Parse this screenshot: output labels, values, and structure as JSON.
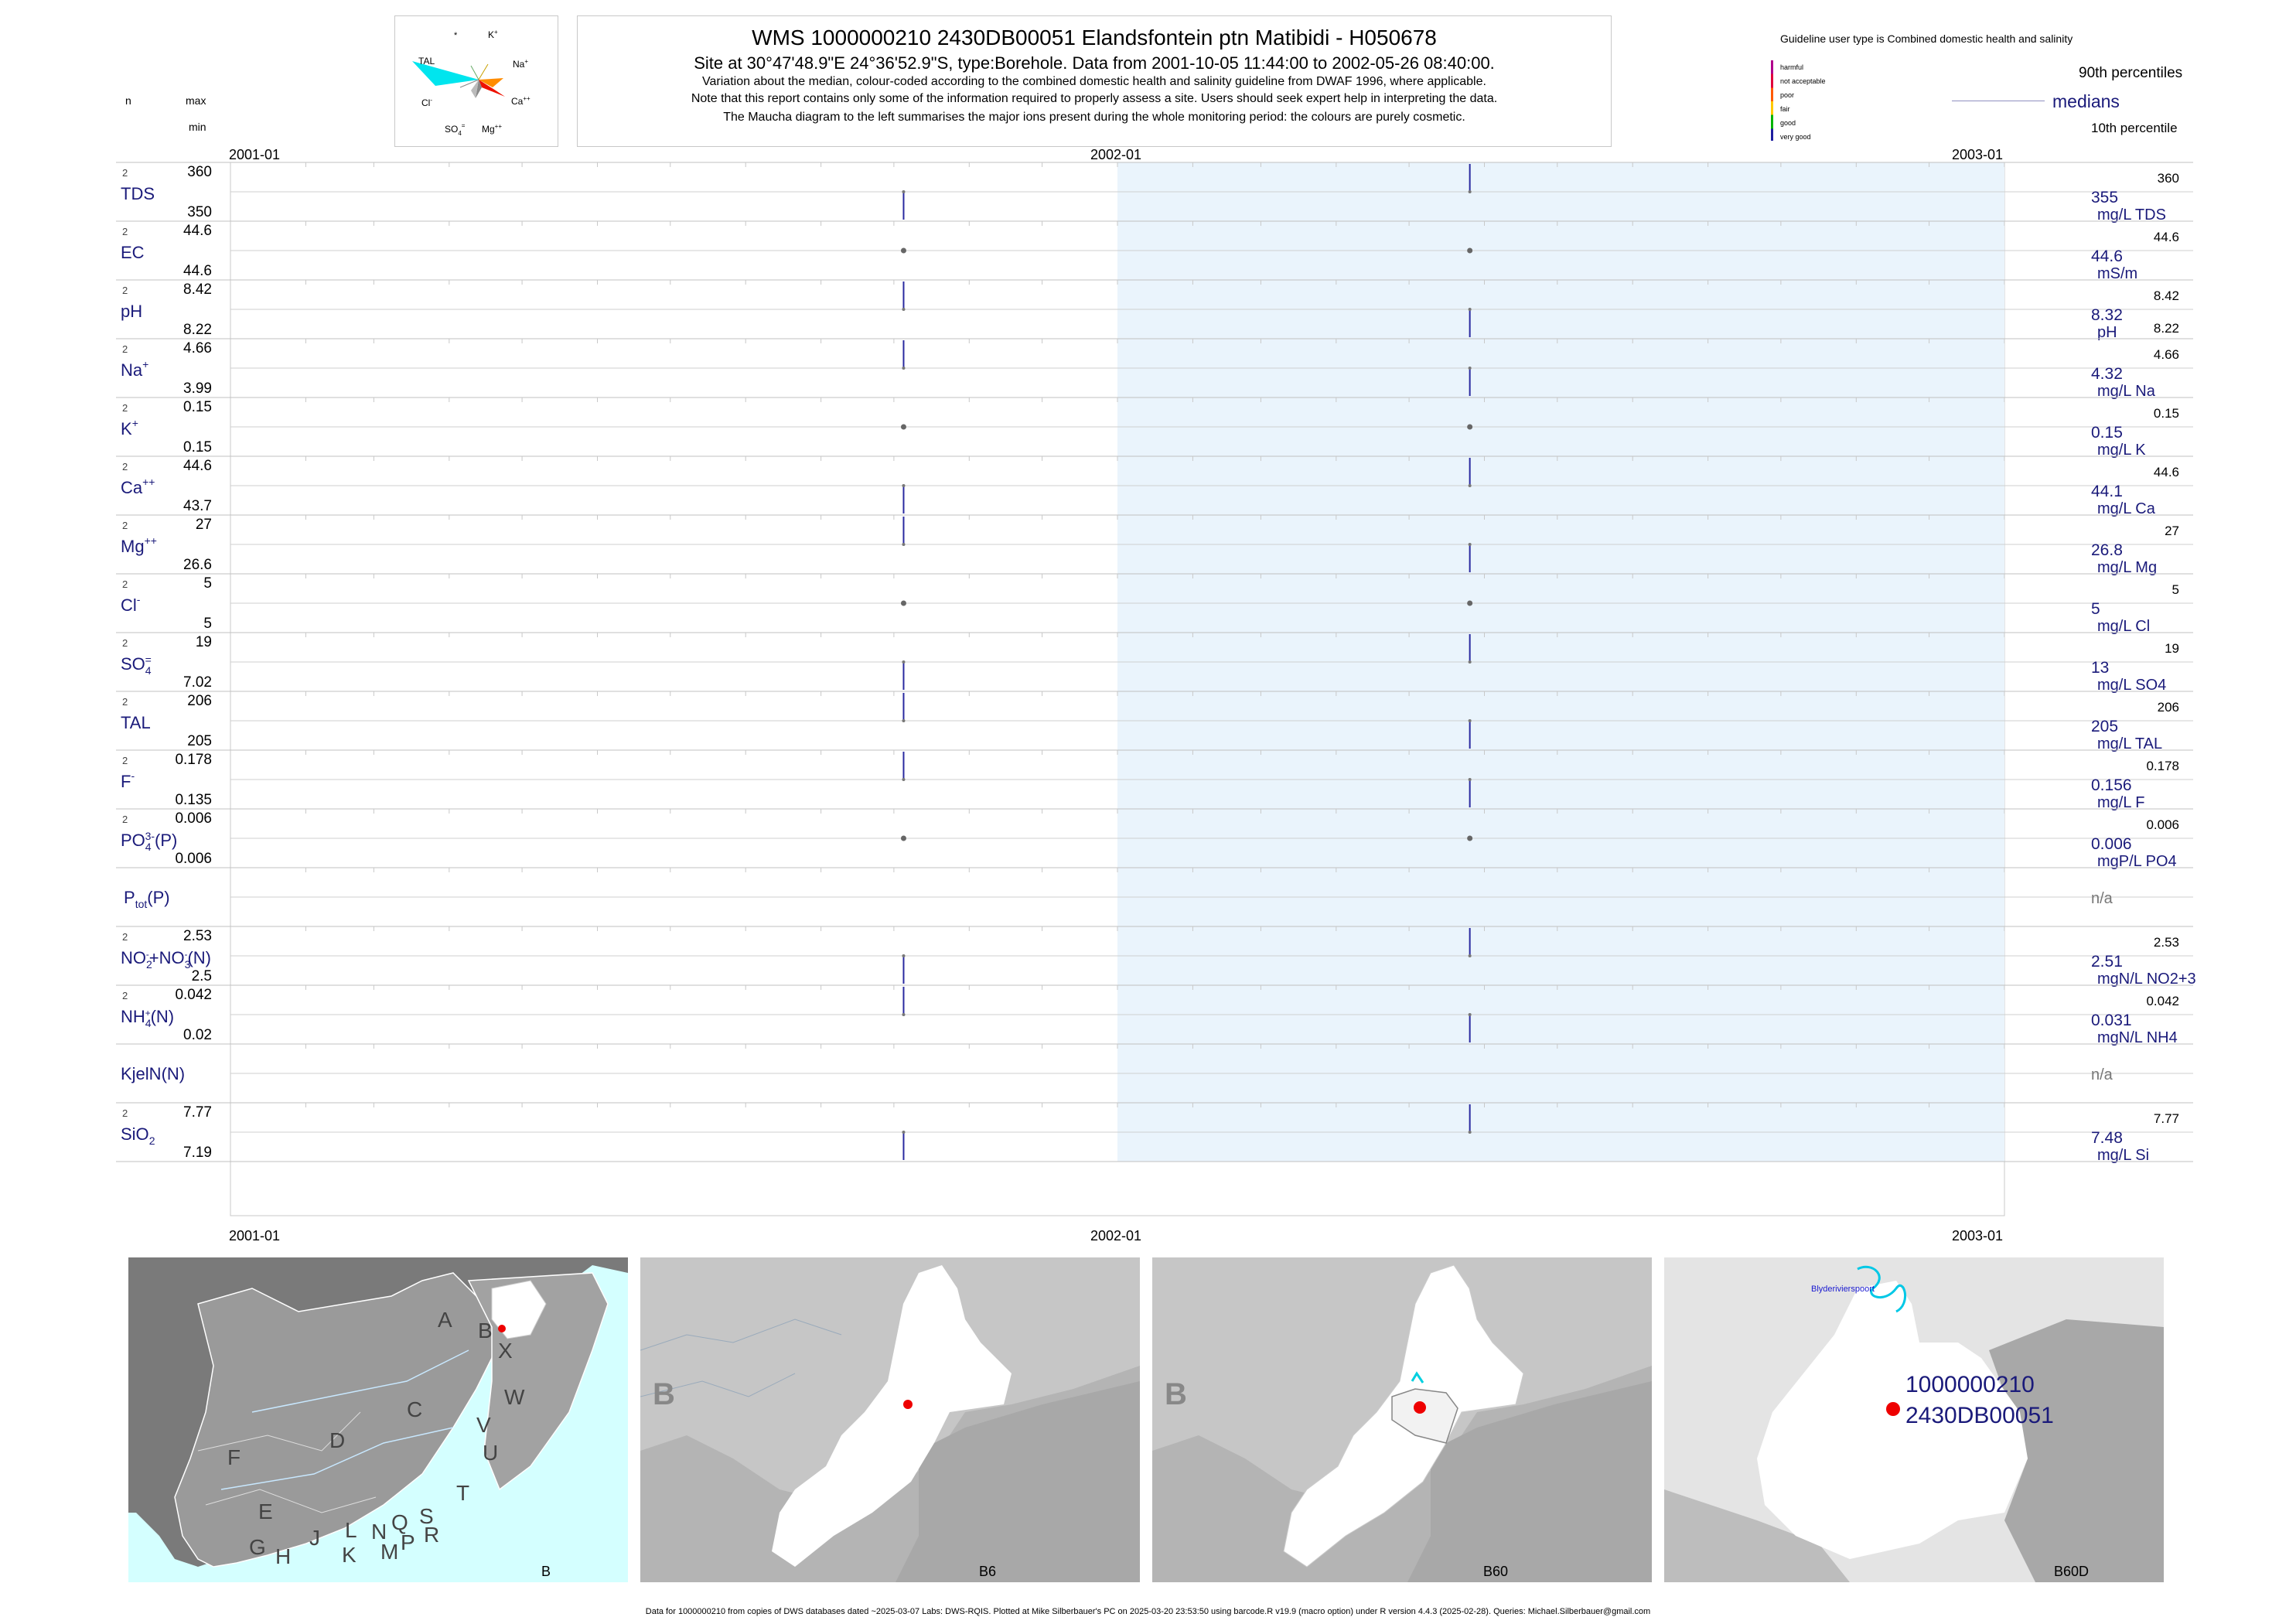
{
  "title": "WMS 1000000210 2430DB00051 Elandsfontein ptn Matibidi - H050678",
  "subtitle": "Site at 30°47'48.9\"E 24°36'52.9\"S, type:Borehole.  Data from 2001-10-05 11:44:00 to 2002-05-26 08:40:00.",
  "note1": "Variation about the median,  colour-coded according to the combined domestic health and salinity guideline from DWAF 1996, where applicable.",
  "note2": "Note that this report contains only some of the information required to properly assess a site. Users should seek expert help in interpreting the data.",
  "note3": "The Maucha diagram to the left summarises the major ions present during the whole monitoring period: the colours are purely cosmetic.",
  "maucha": {
    "labels": [
      "*",
      "K+",
      "Na+",
      "Ca++",
      "Mg++",
      "SO4=",
      "Cl-",
      "TAL"
    ],
    "colors": {
      "tal": "#00e5ee",
      "na": "#ff8c00",
      "ca": "#ee1100",
      "mg": "#888888",
      "so4": "#aaaaaa"
    }
  },
  "header_labels": {
    "n": "n",
    "max": "max",
    "min": "min"
  },
  "guideline": {
    "title": "Guideline user type is Combined domestic health and salinity",
    "classes": [
      {
        "label": "harmful",
        "color": "#b0008c"
      },
      {
        "label": "not acceptable",
        "color": "#e0003c"
      },
      {
        "label": "poor",
        "color": "#ff5a00"
      },
      {
        "label": "fair",
        "color": "#ffc800"
      },
      {
        "label": "good",
        "color": "#00b400"
      },
      {
        "label": "very good",
        "color": "#1e1ea0"
      }
    ],
    "p90": "90th percentiles",
    "medians": "medians",
    "p10": "10th percentile"
  },
  "chart_data": {
    "type": "line",
    "x_ticks": [
      "2001-01",
      "2002-01",
      "2003-01"
    ],
    "x_range": [
      "2001-01-01",
      "2003-01-01"
    ],
    "shaded_period": [
      "2002-01-01",
      "2003-01-01"
    ],
    "sample_dates": [
      "2001-10-05",
      "2002-05-26"
    ],
    "series": [
      {
        "label": "TDS",
        "n": "2",
        "max": "360",
        "min": "350",
        "median": "355",
        "p90": "360",
        "unit": "mg/L TDS",
        "values": [
          350,
          360
        ]
      },
      {
        "label": "EC",
        "n": "2",
        "max": "44.6",
        "min": "44.6",
        "median": "44.6",
        "p90": "44.6",
        "unit": "mS/m",
        "values": [
          44.6,
          44.6
        ]
      },
      {
        "label": "pH",
        "n": "2",
        "max": "8.42",
        "min": "8.22",
        "median": "8.32",
        "p90": "8.42",
        "p10": "8.22",
        "unit": "pH",
        "values": [
          8.42,
          8.22
        ]
      },
      {
        "label": "Na+",
        "n": "2",
        "max": "4.66",
        "min": "3.99",
        "median": "4.32",
        "p90": "4.66",
        "unit": "mg/L Na",
        "values": [
          4.66,
          3.99
        ]
      },
      {
        "label": "K+",
        "n": "2",
        "max": "0.15",
        "min": "0.15",
        "median": "0.15",
        "p90": "0.15",
        "unit": "mg/L K",
        "values": [
          0.15,
          0.15
        ]
      },
      {
        "label": "Ca++",
        "n": "2",
        "max": "44.6",
        "min": "43.7",
        "median": "44.1",
        "p90": "44.6",
        "unit": "mg/L Ca",
        "values": [
          43.7,
          44.6
        ]
      },
      {
        "label": "Mg++",
        "n": "2",
        "max": "27",
        "min": "26.6",
        "median": "26.8",
        "p90": "27",
        "unit": "mg/L Mg",
        "values": [
          27,
          26.6
        ]
      },
      {
        "label": "Cl-",
        "n": "2",
        "max": "5",
        "min": "5",
        "median": "5",
        "p90": "5",
        "unit": "mg/L Cl",
        "values": [
          5,
          5
        ]
      },
      {
        "label": "SO4=",
        "n": "2",
        "max": "19",
        "min": "7.02",
        "median": "13",
        "p90": "19",
        "unit": "mg/L SO4",
        "values": [
          7.02,
          19
        ]
      },
      {
        "label": "TAL",
        "n": "2",
        "max": "206",
        "min": "205",
        "median": "205",
        "p90": "206",
        "unit": "mg/L TAL",
        "values": [
          206,
          205
        ]
      },
      {
        "label": "F-",
        "n": "2",
        "max": "0.178",
        "min": "0.135",
        "median": "0.156",
        "p90": "0.178",
        "unit": "mg/L F",
        "values": [
          0.178,
          0.135
        ]
      },
      {
        "label": "PO4(3-)(P)",
        "n": "2",
        "max": "0.006",
        "min": "0.006",
        "median": "0.006",
        "p90": "0.006",
        "unit": "mgP/L PO4",
        "values": [
          0.006,
          0.006
        ]
      },
      {
        "label": "Ptot(P)",
        "n": "",
        "max": "",
        "min": "",
        "median": "n/a",
        "p90": "",
        "unit": "",
        "values": []
      },
      {
        "label": "NO2-+NO3-(N)",
        "n": "2",
        "max": "2.53",
        "min": "2.5",
        "median": "2.51",
        "p90": "2.53",
        "unit": "mgN/L NO2+3",
        "values": [
          2.5,
          2.53
        ]
      },
      {
        "label": "NH4+(N)",
        "n": "2",
        "max": "0.042",
        "min": "0.02",
        "median": "0.031",
        "p90": "0.042",
        "unit": "mgN/L NH4",
        "values": [
          0.042,
          0.02
        ]
      },
      {
        "label": "KjelN(N)",
        "n": "",
        "max": "",
        "min": "",
        "median": "n/a",
        "p90": "",
        "unit": "",
        "values": []
      },
      {
        "label": "SiO2",
        "n": "2",
        "max": "7.77",
        "min": "7.19",
        "median": "7.48",
        "p90": "7.77",
        "unit": "mg/L Si",
        "values": [
          7.19,
          7.77
        ]
      }
    ]
  },
  "maps": {
    "m1": {
      "caption": "B",
      "letters": [
        "A",
        "B",
        "X",
        "W",
        "C",
        "V",
        "U",
        "D",
        "T",
        "F",
        "E",
        "S",
        "R",
        "Q",
        "N",
        "P",
        "M",
        "L",
        "K",
        "J",
        "H",
        "G"
      ]
    },
    "m2": {
      "caption": "B6",
      "region": "B"
    },
    "m3": {
      "caption": "B60",
      "region": "B"
    },
    "m4": {
      "caption": "B60D",
      "river": "Blyderivierspoort",
      "site_id1": "1000000210",
      "site_id2": "2430DB00051"
    }
  },
  "footer": "Data for 1000000210 from copies of DWS databases dated ~2025-03-07 Labs: DWS-RQIS. Plotted at Mike Silberbauer's PC on 2025-03-20 23:53:50 using barcode.R v19.9 (macro option) under R version 4.4.3 (2025-02-28). Queries: Michael.Silberbauer@gmail.com"
}
